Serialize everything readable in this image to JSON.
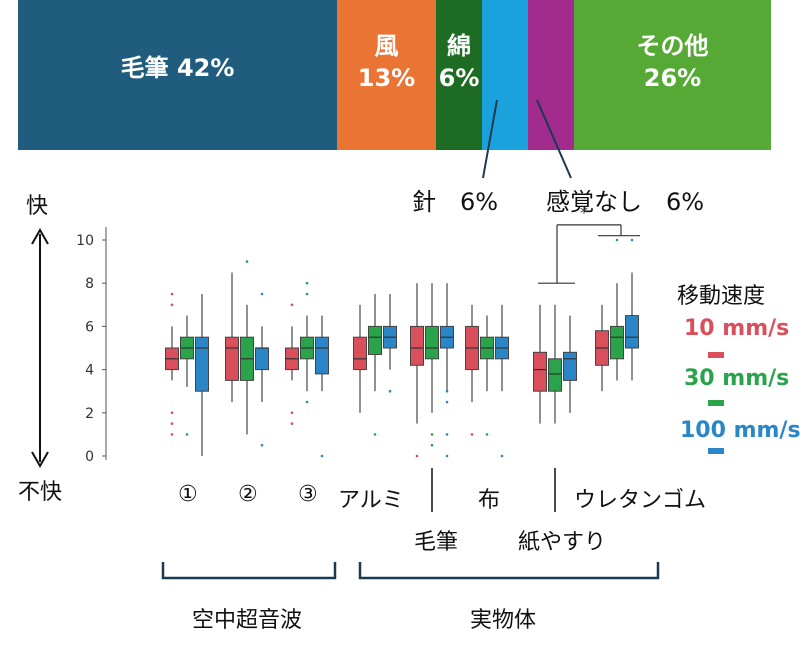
{
  "chart_data": [
    {
      "type": "bar",
      "orientation": "horizontal-stacked",
      "segments": [
        {
          "label": "毛筆",
          "pct": "42%",
          "value": 42,
          "color": "#1f5c7e"
        },
        {
          "label": "風",
          "pct": "13%",
          "value": 13,
          "color": "#ea7434"
        },
        {
          "label": "綿",
          "pct": "6%",
          "value": 6,
          "color": "#1e6b24"
        },
        {
          "label": "針",
          "pct": "6%",
          "value": 6,
          "color": "#1aa2dc"
        },
        {
          "label": "感覚なし",
          "pct": "6%",
          "value": 6,
          "color": "#a12c8e"
        },
        {
          "label": "その他",
          "pct": "26%",
          "value": 26,
          "color": "#56a934"
        }
      ],
      "callouts": {
        "needle": "針　6%",
        "none": "感覚なし　6%"
      }
    },
    {
      "type": "box",
      "yticks": [
        0,
        2,
        4,
        6,
        8,
        10
      ],
      "ylim": [
        0,
        10.6
      ],
      "y_top_label": "快",
      "y_bottom_label": "不快",
      "legend_title": "移動速度",
      "series": [
        {
          "name": "10 mm/s",
          "color": "#d94f5c"
        },
        {
          "name": "30 mm/s",
          "color": "#2aa34a"
        },
        {
          "name": "100 mm/s",
          "color": "#2b86c7"
        }
      ],
      "categories": [
        "①",
        "②",
        "③",
        "アルミ",
        "毛筆",
        "布",
        "紙やすり",
        "ウレタンゴム"
      ],
      "groups": [
        "空中超音波",
        "実物体"
      ],
      "significance": "*",
      "boxes": [
        [
          {
            "min": 3.5,
            "q1": 4.0,
            "med": 4.5,
            "q3": 5.0,
            "max": 6.0,
            "outliers": [
              1.0,
              1.5,
              2.0,
              7.0,
              7.5
            ]
          },
          {
            "min": 3.2,
            "q1": 4.5,
            "med": 5.0,
            "q3": 5.5,
            "max": 6.5,
            "outliers": [
              1.0
            ]
          },
          {
            "min": 0.0,
            "q1": 3.0,
            "med": 5.0,
            "q3": 5.5,
            "max": 7.5,
            "outliers": []
          }
        ],
        [
          {
            "min": 2.5,
            "q1": 3.5,
            "med": 5.0,
            "q3": 5.5,
            "max": 8.5,
            "outliers": []
          },
          {
            "min": 1.0,
            "q1": 3.5,
            "med": 4.5,
            "q3": 5.5,
            "max": 7.0,
            "outliers": [
              9.0
            ]
          },
          {
            "min": 2.5,
            "q1": 4.0,
            "med": 5.0,
            "q3": 5.0,
            "max": 6.0,
            "outliers": [
              0.5,
              7.5
            ]
          }
        ],
        [
          {
            "min": 3.5,
            "q1": 4.0,
            "med": 4.5,
            "q3": 5.0,
            "max": 6.0,
            "outliers": [
              1.5,
              2.0,
              7.0
            ]
          },
          {
            "min": 3.0,
            "q1": 4.5,
            "med": 5.0,
            "q3": 5.5,
            "max": 6.5,
            "outliers": [
              2.5,
              7.5,
              8.0
            ]
          },
          {
            "min": 3.0,
            "q1": 3.8,
            "med": 5.0,
            "q3": 5.5,
            "max": 6.5,
            "outliers": [
              0.0
            ]
          }
        ],
        [
          {
            "min": 2.0,
            "q1": 4.0,
            "med": 4.5,
            "q3": 5.5,
            "max": 7.0,
            "outliers": []
          },
          {
            "min": 3.0,
            "q1": 4.7,
            "med": 5.5,
            "q3": 6.0,
            "max": 7.5,
            "outliers": [
              1.0
            ]
          },
          {
            "min": 4.0,
            "q1": 5.0,
            "med": 5.5,
            "q3": 6.0,
            "max": 7.5,
            "outliers": [
              3.0
            ]
          }
        ],
        [
          {
            "min": 1.5,
            "q1": 4.2,
            "med": 5.0,
            "q3": 6.0,
            "max": 8.0,
            "outliers": [
              0.0
            ]
          },
          {
            "min": 2.0,
            "q1": 4.5,
            "med": 5.0,
            "q3": 6.0,
            "max": 8.0,
            "outliers": [
              0.5,
              1.0
            ]
          },
          {
            "min": 3.0,
            "q1": 5.0,
            "med": 5.5,
            "q3": 6.0,
            "max": 8.0,
            "outliers": [
              0.0,
              1.0,
              2.5,
              3.0
            ]
          }
        ],
        [
          {
            "min": 2.5,
            "q1": 4.0,
            "med": 5.0,
            "q3": 6.0,
            "max": 7.0,
            "outliers": [
              1.0
            ]
          },
          {
            "min": 3.0,
            "q1": 4.5,
            "med": 5.0,
            "q3": 5.5,
            "max": 6.5,
            "outliers": [
              1.0
            ]
          },
          {
            "min": 3.0,
            "q1": 4.5,
            "med": 5.0,
            "q3": 5.5,
            "max": 7.0,
            "outliers": [
              0.0
            ]
          }
        ],
        [
          {
            "min": 1.5,
            "q1": 3.0,
            "med": 4.0,
            "q3": 4.8,
            "max": 7.0,
            "outliers": []
          },
          {
            "min": 1.5,
            "q1": 3.0,
            "med": 3.8,
            "q3": 4.5,
            "max": 7.0,
            "outliers": []
          },
          {
            "min": 2.0,
            "q1": 3.5,
            "med": 4.5,
            "q3": 4.8,
            "max": 6.5,
            "outliers": []
          }
        ],
        [
          {
            "min": 3.0,
            "q1": 4.2,
            "med": 5.0,
            "q3": 5.8,
            "max": 7.0,
            "outliers": []
          },
          {
            "min": 3.5,
            "q1": 4.5,
            "med": 5.5,
            "q3": 6.0,
            "max": 8.0,
            "outliers": [
              10.0
            ]
          },
          {
            "min": 3.5,
            "q1": 5.0,
            "med": 5.5,
            "q3": 6.5,
            "max": 8.5,
            "outliers": [
              10.0
            ]
          }
        ]
      ]
    }
  ]
}
